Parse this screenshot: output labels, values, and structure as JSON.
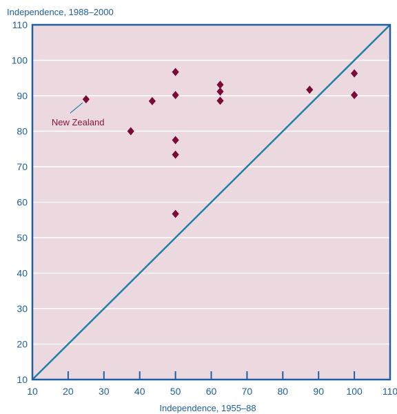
{
  "chart_data": {
    "type": "scatter",
    "ylabel": "Independence, 1988–2000",
    "xlabel": "Independence, 1955–88",
    "xlim": [
      10,
      110
    ],
    "ylim": [
      10,
      110
    ],
    "x_ticks": [
      "10",
      "20",
      "30",
      "40",
      "50",
      "60",
      "70",
      "80",
      "90",
      "100",
      "110"
    ],
    "y_ticks": [
      "10",
      "20",
      "30",
      "40",
      "50",
      "60",
      "70",
      "80",
      "90",
      "100",
      "110"
    ],
    "grid": "horizontal",
    "reference_line": {
      "from": [
        10,
        10
      ],
      "to": [
        110,
        110
      ]
    },
    "points": [
      {
        "x": 25,
        "y": 89
      },
      {
        "x": 37.5,
        "y": 80
      },
      {
        "x": 43.5,
        "y": 88.5
      },
      {
        "x": 50,
        "y": 96.7
      },
      {
        "x": 50,
        "y": 90.2
      },
      {
        "x": 50,
        "y": 77.5
      },
      {
        "x": 50,
        "y": 73.4
      },
      {
        "x": 50,
        "y": 56.7
      },
      {
        "x": 62.5,
        "y": 93.1
      },
      {
        "x": 62.5,
        "y": 91.2
      },
      {
        "x": 62.5,
        "y": 88.6
      },
      {
        "x": 87.5,
        "y": 91.7
      },
      {
        "x": 100,
        "y": 96.3
      },
      {
        "x": 100,
        "y": 90.2
      }
    ],
    "annotations": [
      {
        "text": "New Zealand",
        "point_index": 0
      }
    ],
    "colors": {
      "plot_bg": "#ecd9df",
      "marker": "#7a0a38",
      "axis_text": "#1f5fa0",
      "frame": "#1f5fa0",
      "diagonal": "#1e7fa8",
      "annotation": "#8a1538",
      "grid": "#ffffff"
    }
  }
}
